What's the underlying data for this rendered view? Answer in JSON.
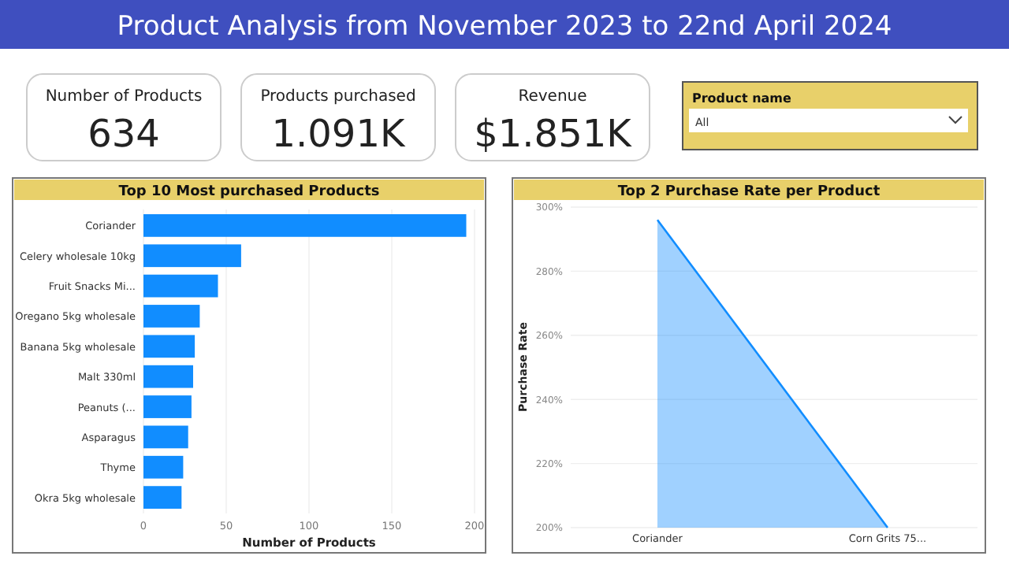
{
  "chart_data": [
    {
      "type": "other",
      "title": "Product Analysis from November 2023 to 22nd April 2024",
      "annotations": [
        "Number of Products",
        "634",
        "Products purchased",
        "1.091K",
        "Revenue",
        "$1.851K",
        "Product name",
        "All"
      ]
    },
    {
      "type": "bar",
      "orientation": "horizontal",
      "title": "Top 10 Most purchased Products",
      "categories": [
        "Coriander",
        "Celery wholesale 10kg",
        "Fruit Snacks Mi...",
        "Oregano 5kg wholesale",
        "Banana 5kg wholesale",
        "Malt 330ml",
        "Peanuts (...",
        "Asparagus",
        "Thyme",
        "Okra 5kg wholesale"
      ],
      "values": [
        195,
        59,
        45,
        34,
        31,
        30,
        29,
        27,
        24,
        23
      ],
      "color": "#118dff",
      "xlim": [
        0,
        200
      ],
      "xticks": [
        0,
        50,
        100,
        150,
        200
      ],
      "xlabel": "Number of Products",
      "grid": "x"
    },
    {
      "type": "area",
      "title": "Top 2 Purchase Rate per Product",
      "categories": [
        "Coriander",
        "Corn Grits 75..."
      ],
      "values": [
        296,
        200
      ],
      "color": "#118dff",
      "ylim": [
        200,
        300
      ],
      "yticks": [
        {
          "value": 200,
          "label": "200%"
        },
        {
          "value": 220,
          "label": "220%"
        },
        {
          "value": 240,
          "label": "240%"
        },
        {
          "value": 260,
          "label": "260%"
        },
        {
          "value": 280,
          "label": "280%"
        },
        {
          "value": 300,
          "label": "300%"
        }
      ],
      "ylabel": "Purchase Rate",
      "grid": "y"
    }
  ]
}
